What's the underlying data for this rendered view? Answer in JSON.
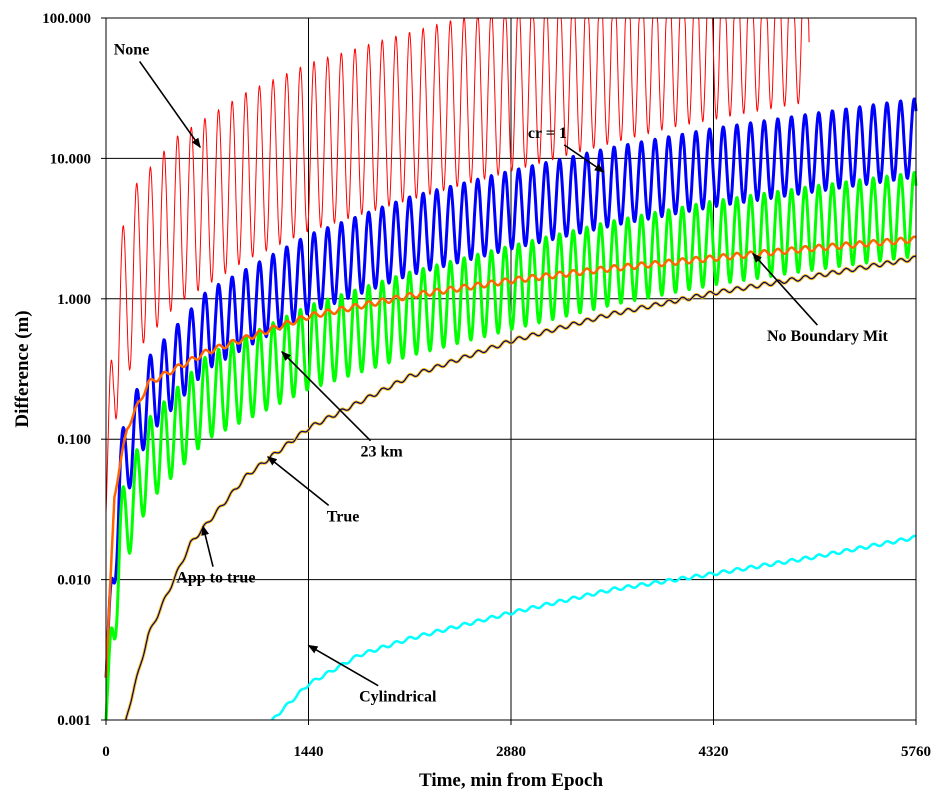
{
  "chart_data": {
    "type": "line",
    "title": "",
    "xlabel": "Time, min from Epoch",
    "ylabel": "Difference (m)",
    "xlim": [
      0,
      5760
    ],
    "ylim": [
      0.001,
      100
    ],
    "yscale": "log",
    "grid": true,
    "legend": "none",
    "x_ticks": [
      0,
      1440,
      2880,
      4320,
      5760
    ],
    "x_tick_labels": [
      "0",
      "1440",
      "2880",
      "4320",
      "5760"
    ],
    "y_ticks": [
      0.001,
      0.01,
      0.1,
      1,
      10,
      100
    ],
    "y_tick_labels": [
      "0.001",
      "0.010",
      "0.100",
      "1.000",
      "10.000",
      "100.000"
    ],
    "series": [
      {
        "color": "#ff0000",
        "width": 1,
        "oscillation_amplitude_log10": 0.6,
        "oscillation_period_min": 97,
        "x": [
          0,
          60,
          200,
          500,
          1000,
          1440,
          2000,
          2880,
          3500,
          4000,
          4600,
          5000
        ],
        "y": [
          0.03,
          0.5,
          1.6,
          3.6,
          7.5,
          12,
          18,
          32,
          48,
          65,
          85,
          100
        ]
      },
      {
        "color": "#0000ff",
        "width": 3,
        "oscillation_amplitude_log10": 0.28,
        "oscillation_period_min": 97,
        "x": [
          0,
          100,
          300,
          720,
          1440,
          2160,
          2880,
          3600,
          4320,
          5040,
          5760
        ],
        "y": [
          0.002,
          0.055,
          0.2,
          0.6,
          1.5,
          2.8,
          4.3,
          6.3,
          8.6,
          11,
          14
        ]
      },
      {
        "color": "#00ff00",
        "width": 3,
        "oscillation_amplitude_log10": 0.3,
        "oscillation_period_min": 97,
        "x": [
          0,
          100,
          300,
          720,
          1440,
          2160,
          2880,
          3600,
          4320,
          5040,
          5760
        ],
        "y": [
          0.001,
          0.02,
          0.07,
          0.2,
          0.45,
          0.78,
          1.2,
          1.8,
          2.5,
          3.2,
          4
        ]
      },
      {
        "color": "#ff6600",
        "width": 2.5,
        "oscillation_amplitude_log10": 0.02,
        "oscillation_period_min": 97,
        "x": [
          0,
          60,
          150,
          300,
          720,
          1440,
          2160,
          2880,
          3600,
          4320,
          5040,
          5760
        ],
        "y": [
          0.002,
          0.04,
          0.12,
          0.25,
          0.42,
          0.75,
          1.05,
          1.35,
          1.65,
          1.95,
          2.3,
          2.65
        ]
      },
      {
        "color": "#ffc000",
        "width": 3,
        "oscillation_amplitude_log10": 0.015,
        "oscillation_period_min": 97,
        "x": [
          140,
          300,
          600,
          1000,
          1440,
          2160,
          2880,
          3600,
          4320,
          5040,
          5760
        ],
        "y": [
          0.001,
          0.004,
          0.018,
          0.055,
          0.12,
          0.28,
          0.5,
          0.78,
          1.1,
          1.45,
          1.95
        ]
      },
      {
        "color": "#000080",
        "width": 1.2,
        "oscillation_amplitude_log10": 0.015,
        "oscillation_period_min": 97,
        "x": [
          140,
          300,
          600,
          1000,
          1440,
          2160,
          2880,
          3600,
          4320,
          5040,
          5760
        ],
        "y": [
          0.001,
          0.004,
          0.018,
          0.055,
          0.12,
          0.28,
          0.5,
          0.78,
          1.1,
          1.45,
          1.95
        ]
      },
      {
        "color": "#00ffff",
        "width": 2.5,
        "oscillation_amplitude_log10": 0.012,
        "oscillation_period_min": 97,
        "x": [
          1180,
          1440,
          1800,
          2160,
          2880,
          3600,
          4320,
          5040,
          5760
        ],
        "y": [
          0.001,
          0.0018,
          0.0029,
          0.0038,
          0.0058,
          0.0085,
          0.011,
          0.0145,
          0.02
        ]
      }
    ],
    "annotations": [
      {
        "text": "None",
        "x": 55,
        "y": 55,
        "point_x": 670,
        "point_y": 12
      },
      {
        "text": "cr = 1",
        "x": 3000,
        "y": 14,
        "point_x": 3540,
        "point_y": 8
      },
      {
        "text": "No Boundary Mit",
        "x": 4700,
        "y": 0.5,
        "point_x": 4600,
        "point_y": 2.1
      },
      {
        "text": "23 km",
        "x": 1810,
        "y": 0.075,
        "point_x": 1250,
        "point_y": 0.42
      },
      {
        "text": "True",
        "x": 1570,
        "y": 0.026,
        "point_x": 1150,
        "point_y": 0.075
      },
      {
        "text": "App to true",
        "x": 500,
        "y": 0.0095,
        "point_x": 690,
        "point_y": 0.024
      },
      {
        "text": "Cylindrical",
        "x": 1800,
        "y": 0.00135,
        "point_x": 1440,
        "point_y": 0.0034
      }
    ]
  }
}
